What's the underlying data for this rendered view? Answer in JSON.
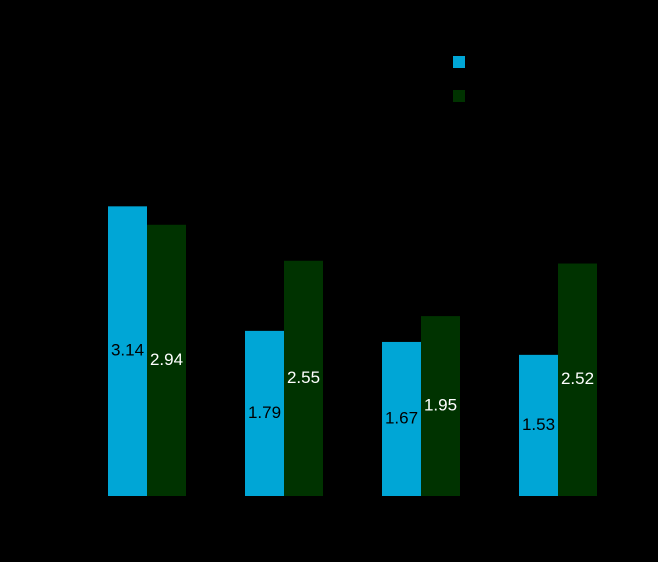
{
  "chart_data": {
    "type": "bar",
    "categories": [
      null,
      null,
      null,
      null
    ],
    "series": [
      {
        "color": "#00a6d6",
        "label_color": "#000000",
        "values": [
          3.14,
          1.79,
          1.67,
          1.53
        ]
      },
      {
        "color": "#003300",
        "label_color": "#ffffff",
        "values": [
          2.94,
          2.55,
          1.95,
          2.52
        ]
      }
    ],
    "ylim": [
      0,
      4
    ]
  }
}
